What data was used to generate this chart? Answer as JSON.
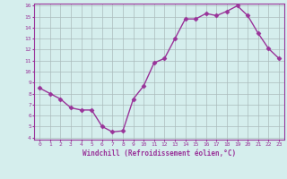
{
  "x": [
    0,
    1,
    2,
    3,
    4,
    5,
    6,
    7,
    8,
    9,
    10,
    11,
    12,
    13,
    14,
    15,
    16,
    17,
    18,
    19,
    20,
    21,
    22,
    23
  ],
  "y": [
    8.5,
    8.0,
    7.5,
    6.7,
    6.5,
    6.5,
    5.0,
    4.5,
    4.6,
    7.5,
    8.7,
    10.8,
    11.2,
    13.0,
    14.8,
    14.8,
    15.3,
    15.1,
    15.5,
    16.0,
    15.1,
    13.5,
    12.1,
    11.2
  ],
  "line_color": "#993399",
  "marker": "D",
  "marker_size": 2.5,
  "bg_color": "#d5eeed",
  "grid_color": "#aabbbb",
  "xlabel": "Windchill (Refroidissement éolien,°C)",
  "xlabel_color": "#993399",
  "tick_color": "#993399",
  "ylim": [
    4,
    16
  ],
  "xlim": [
    -0.5,
    23.5
  ],
  "yticks": [
    4,
    5,
    6,
    7,
    8,
    9,
    10,
    11,
    12,
    13,
    14,
    15,
    16
  ],
  "xticks": [
    0,
    1,
    2,
    3,
    4,
    5,
    6,
    7,
    8,
    9,
    10,
    11,
    12,
    13,
    14,
    15,
    16,
    17,
    18,
    19,
    20,
    21,
    22,
    23
  ],
  "spine_color": "#993399",
  "linewidth": 1.0
}
